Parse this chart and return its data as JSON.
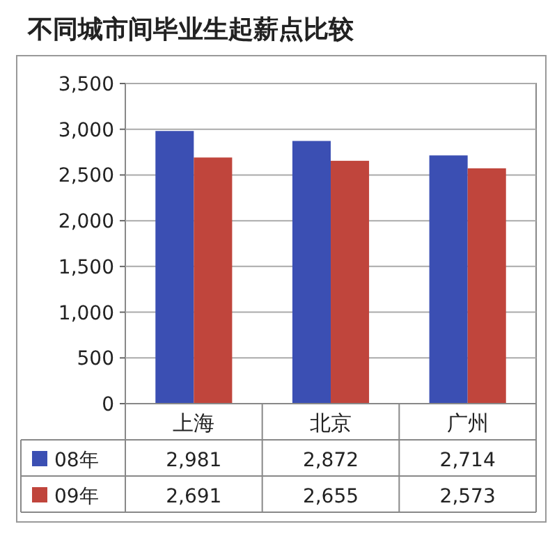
{
  "chart_data": {
    "type": "bar",
    "title": "不同城市间毕业生起薪点比较",
    "categories": [
      "上海",
      "北京",
      "广州"
    ],
    "series": [
      {
        "name": "08年",
        "color": "#3b4fb3",
        "values": [
          2981,
          2872,
          2714
        ],
        "value_labels": [
          "2,981",
          "2,872",
          "2,714"
        ]
      },
      {
        "name": "09年",
        "color": "#c0453c",
        "values": [
          2691,
          2655,
          2573
        ],
        "value_labels": [
          "2,691",
          "2,655",
          "2,573"
        ]
      }
    ],
    "ylim": [
      0,
      3500
    ],
    "yticks": [
      {
        "value": 0,
        "label": "0"
      },
      {
        "value": 500,
        "label": "500"
      },
      {
        "value": 1000,
        "label": "1,000"
      },
      {
        "value": 1500,
        "label": "1,500"
      },
      {
        "value": 2000,
        "label": "2,000"
      },
      {
        "value": 2500,
        "label": "2,500"
      },
      {
        "value": 3000,
        "label": "3,000"
      },
      {
        "value": 3500,
        "label": "3,500"
      }
    ],
    "grid": "y",
    "legend": "bottom"
  }
}
